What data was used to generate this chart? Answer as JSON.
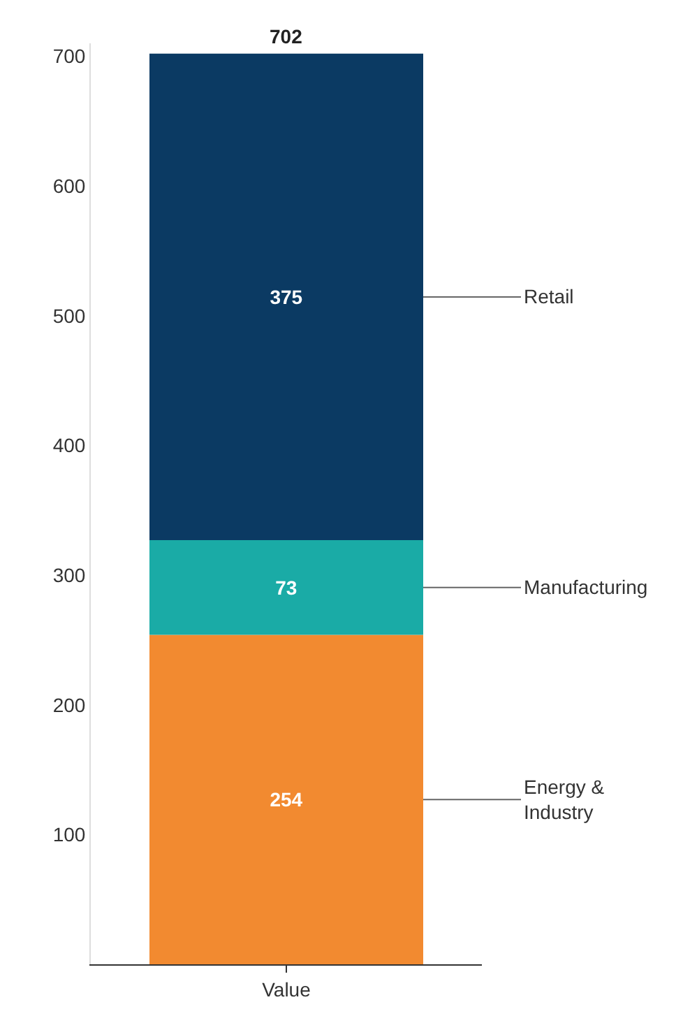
{
  "chart_data": {
    "type": "bar",
    "stacked": true,
    "categories": [
      "Value"
    ],
    "series": [
      {
        "name": "Energy & Industry",
        "color": "#f28a30",
        "values": [
          254
        ]
      },
      {
        "name": "Manufacturing",
        "color": "#1aaba6",
        "values": [
          73
        ]
      },
      {
        "name": "Retail",
        "color": "#0b3a63",
        "values": [
          375
        ]
      }
    ],
    "ylim": [
      0,
      710
    ],
    "yticks": [
      100,
      200,
      300,
      400,
      500,
      600,
      700
    ],
    "data_labels": true,
    "totals": [
      "702"
    ],
    "legend": false
  }
}
